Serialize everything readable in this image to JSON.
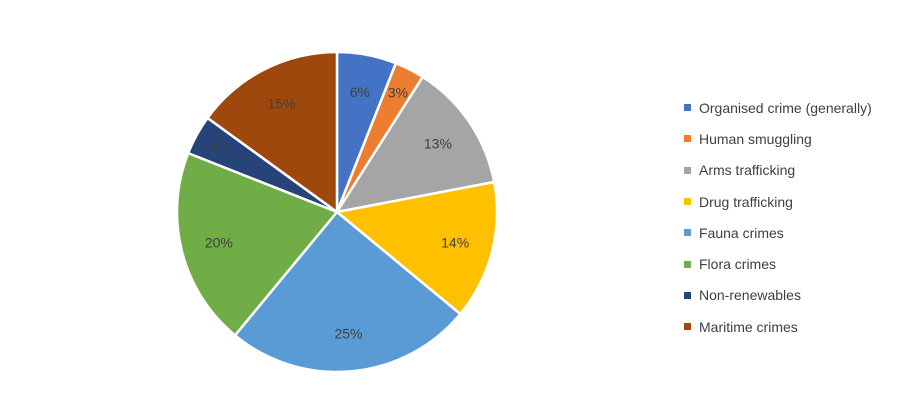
{
  "chart_data": {
    "type": "pie",
    "title": "",
    "legend_position": "right",
    "slices": [
      {
        "name": "Organised crime (generally)",
        "value": 6,
        "label": "6%",
        "color": "#4472C4"
      },
      {
        "name": "Human smuggling",
        "value": 3,
        "label": "3%",
        "color": "#ED7D31"
      },
      {
        "name": "Arms trafficking",
        "value": 13,
        "label": "13%",
        "color": "#A5A5A5"
      },
      {
        "name": "Drug trafficking",
        "value": 14,
        "label": "14%",
        "color": "#FFC000"
      },
      {
        "name": "Fauna crimes",
        "value": 25,
        "label": "25%",
        "color": "#5B9BD5"
      },
      {
        "name": "Flora crimes",
        "value": 20,
        "label": "20%",
        "color": "#70AD47"
      },
      {
        "name": "Non-renewables",
        "value": 4,
        "label": "4%",
        "color": "#264478"
      },
      {
        "name": "Maritime crimes",
        "value": 15,
        "label": "15%",
        "color": "#9E480E"
      }
    ]
  }
}
